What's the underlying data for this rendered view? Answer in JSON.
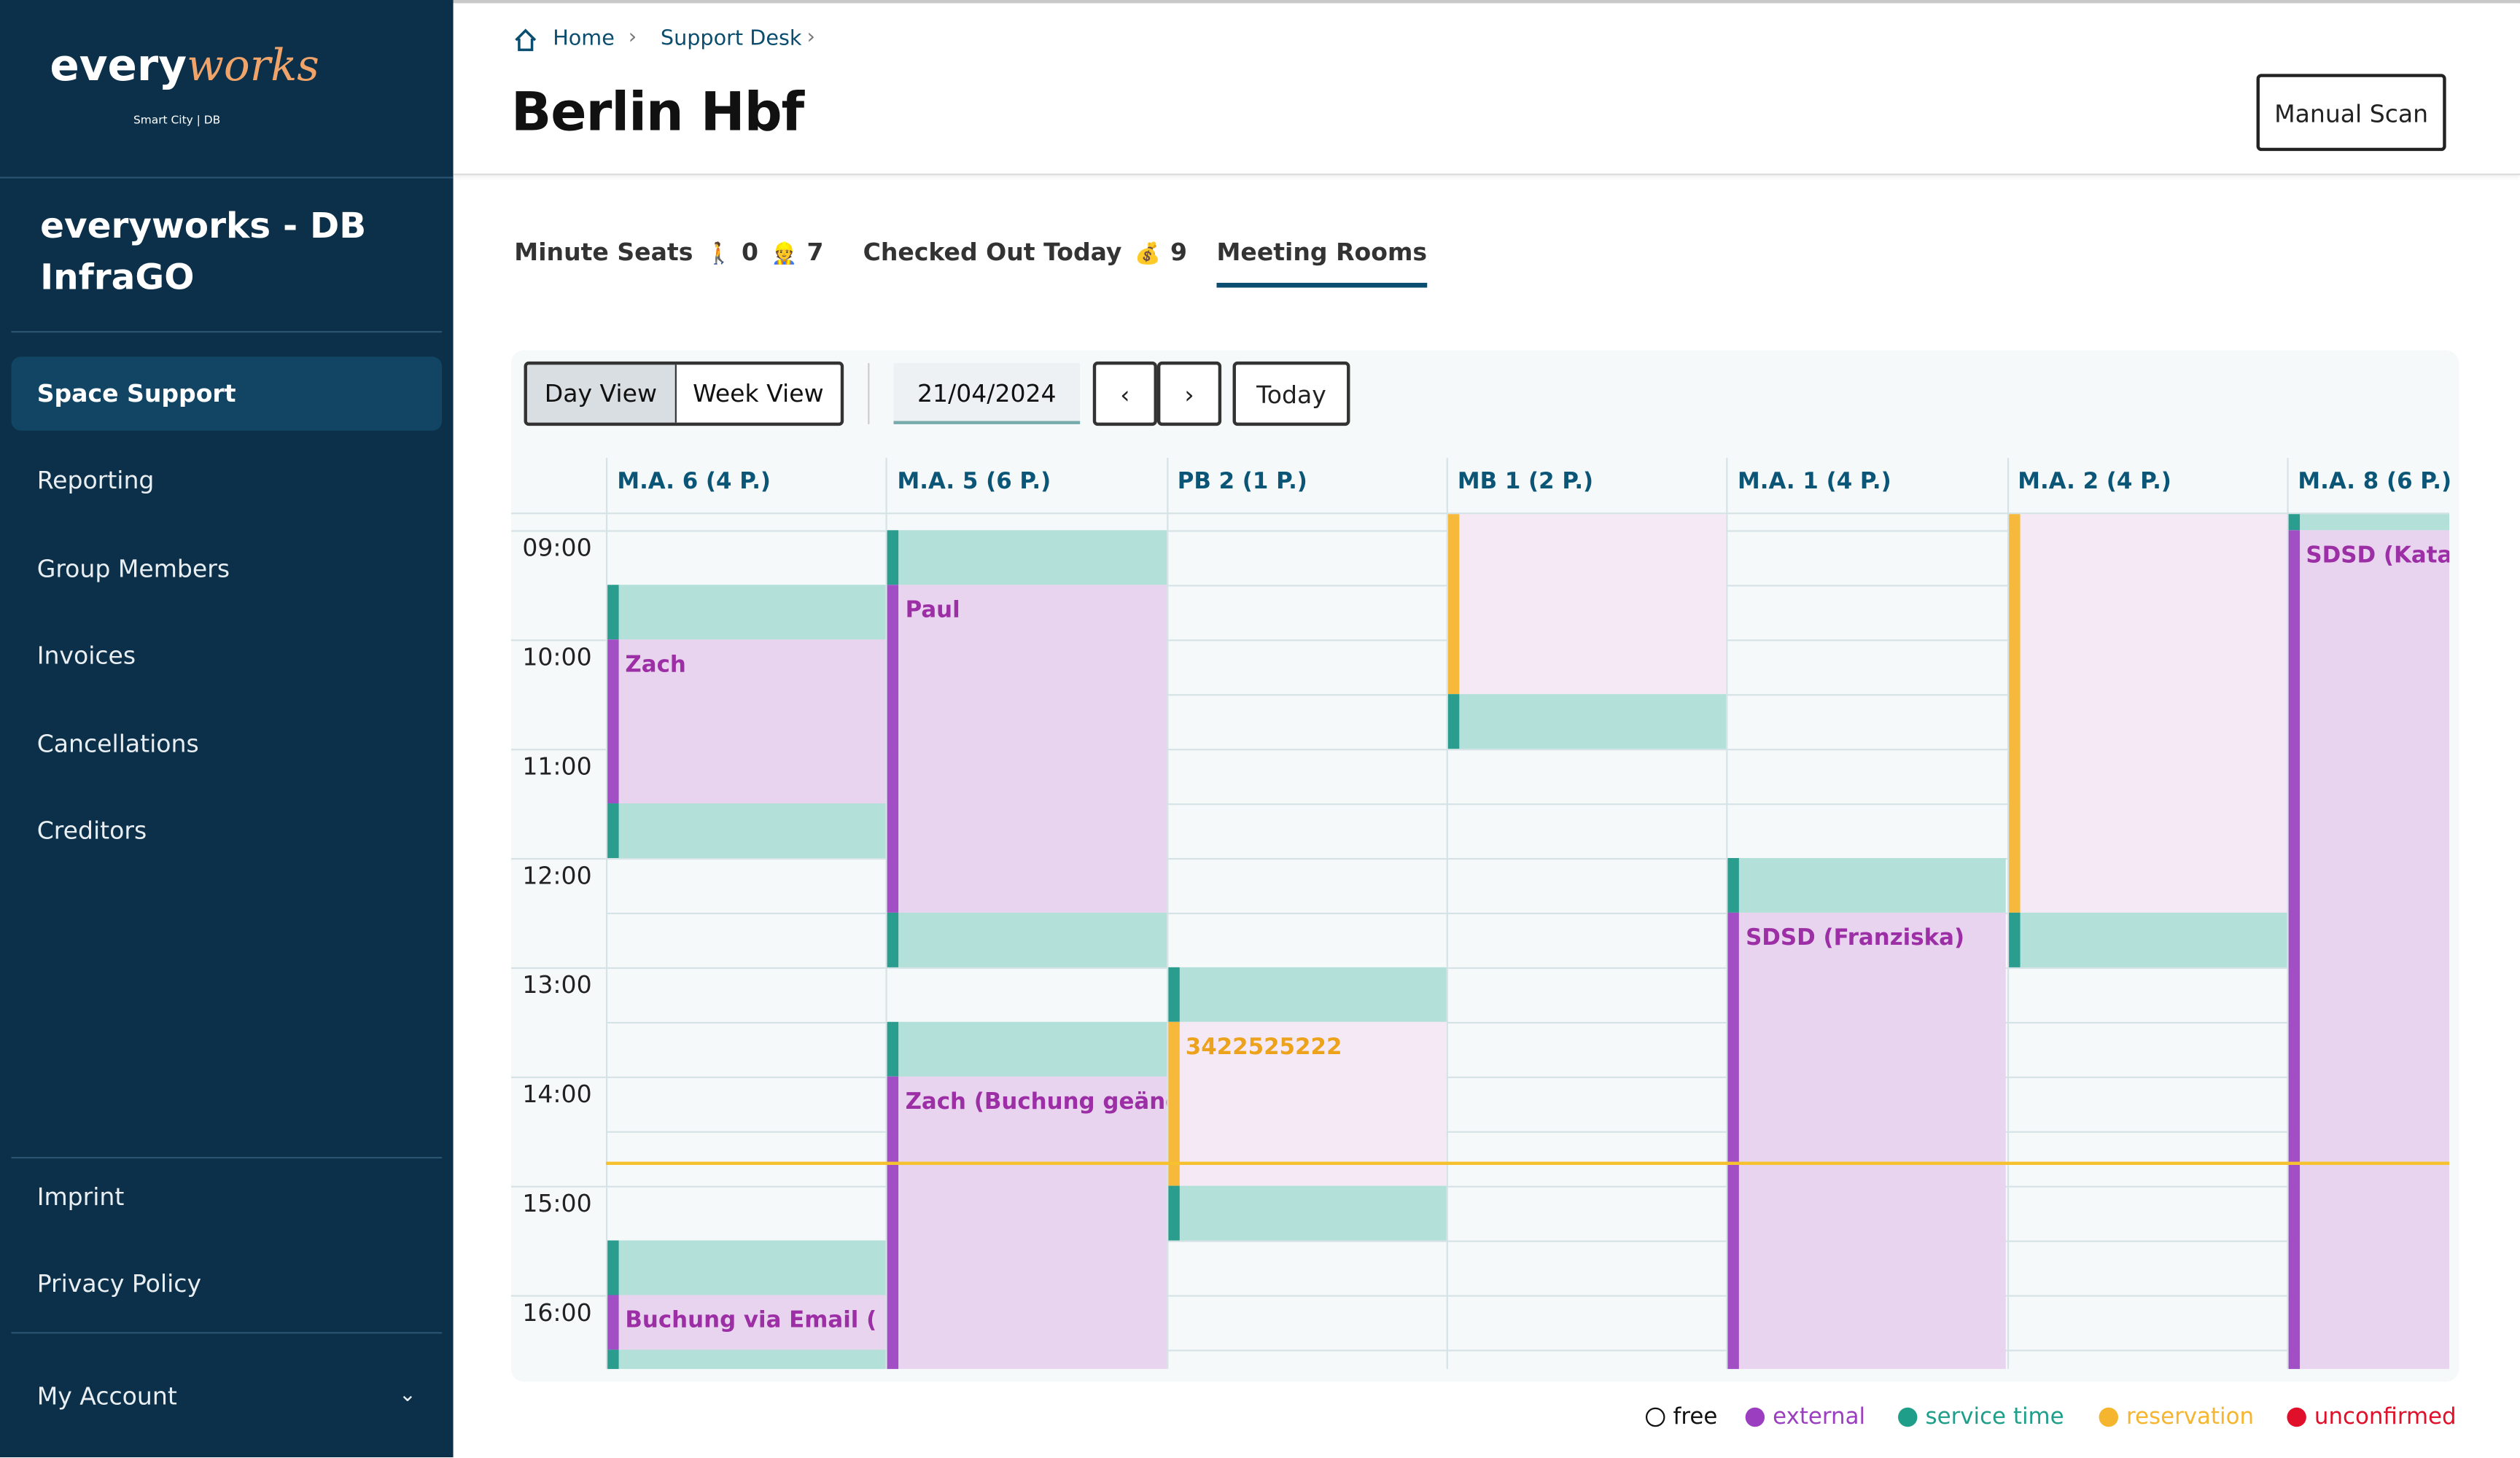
{
  "sidebar": {
    "logo": {
      "part1": "every",
      "part2": "works",
      "sub": "Smart City | DB"
    },
    "org": "everyworks - DB InfraGO",
    "nav": [
      "Space Support",
      "Reporting",
      "Group Members",
      "Invoices",
      "Cancellations",
      "Creditors"
    ],
    "active_nav": 0,
    "footer": [
      "Imprint",
      "Privacy Policy"
    ],
    "account": "My Account"
  },
  "header": {
    "breadcrumb": [
      "Home",
      "Support Desk"
    ],
    "title": "Berlin Hbf",
    "button": "Manual Scan"
  },
  "tabs": [
    {
      "label": "Minute Seats",
      "stats": [
        {
          "icon": "🚶",
          "value": 0
        },
        {
          "icon": "👷",
          "value": 7
        }
      ]
    },
    {
      "label": "Checked Out Today",
      "stats": [
        {
          "icon": "💰",
          "value": 9
        }
      ]
    },
    {
      "label": "Meeting Rooms"
    }
  ],
  "active_tab": 2,
  "toolbar": {
    "views": [
      "Day View",
      "Week View"
    ],
    "active_view": 0,
    "date": "21/04/2024",
    "today": "Today"
  },
  "calendar": {
    "rooms": [
      "M.A. 6 (4 P.)",
      "M.A. 5 (6 P.)",
      "PB 2 (1 P.)",
      "MB 1 (2 P.)",
      "M.A. 1 (4 P.)",
      "M.A. 2 (4 P.)",
      "M.A. 8 (6 P.)"
    ],
    "times": [
      "09:00",
      "10:00",
      "11:00",
      "12:00",
      "13:00",
      "14:00",
      "15:00",
      "16:00"
    ],
    "now": 14.8,
    "events": [
      {
        "room": 0,
        "kind": "service",
        "start": 9.5,
        "end": 10
      },
      {
        "room": 0,
        "kind": "external",
        "start": 10,
        "end": 11.5,
        "label": "Zach"
      },
      {
        "room": 0,
        "kind": "service",
        "start": 11.5,
        "end": 12
      },
      {
        "room": 0,
        "kind": "service",
        "start": 15.5,
        "end": 16
      },
      {
        "room": 0,
        "kind": "external",
        "start": 16,
        "end": 16.5,
        "label": "Buchung via Email ( Pa"
      },
      {
        "room": 0,
        "kind": "service",
        "start": 16.5,
        "end": 17
      },
      {
        "room": 1,
        "kind": "service",
        "start": 9,
        "end": 9.5
      },
      {
        "room": 1,
        "kind": "external",
        "start": 9.5,
        "end": 12.5,
        "label": "Paul"
      },
      {
        "room": 1,
        "kind": "service",
        "start": 12.5,
        "end": 13
      },
      {
        "room": 1,
        "kind": "service",
        "start": 13.5,
        "end": 14
      },
      {
        "room": 1,
        "kind": "external",
        "start": 14,
        "end": 17,
        "label": "Zach (Buchung geände"
      },
      {
        "room": 2,
        "kind": "service",
        "start": 13,
        "end": 13.5
      },
      {
        "room": 2,
        "kind": "reservation",
        "start": 13.5,
        "end": 15,
        "label": "3422525222"
      },
      {
        "room": 2,
        "kind": "service",
        "start": 15,
        "end": 15.5
      },
      {
        "room": 3,
        "kind": "reservation",
        "start": 8.5,
        "end": 10.5
      },
      {
        "room": 3,
        "kind": "service",
        "start": 10.5,
        "end": 11
      },
      {
        "room": 4,
        "kind": "service",
        "start": 12,
        "end": 12.5
      },
      {
        "room": 4,
        "kind": "external",
        "start": 12.5,
        "end": 17,
        "label": "SDSD (Franziska)"
      },
      {
        "room": 5,
        "kind": "reservation",
        "start": 8.5,
        "end": 12.5
      },
      {
        "room": 5,
        "kind": "service",
        "start": 12.5,
        "end": 13
      },
      {
        "room": 6,
        "kind": "service",
        "start": 8.5,
        "end": 9
      },
      {
        "room": 6,
        "kind": "external",
        "start": 9,
        "end": 17,
        "label": "SDSD (Katari"
      }
    ]
  },
  "legend": [
    {
      "label": "free",
      "color": "#ffffff"
    },
    {
      "label": "external",
      "color": "#9b3fc0"
    },
    {
      "label": "service time",
      "color": "#1f9e8a"
    },
    {
      "label": "reservation",
      "color": "#f6b52e"
    },
    {
      "label": "unconfirmed",
      "color": "#e0102a"
    }
  ]
}
